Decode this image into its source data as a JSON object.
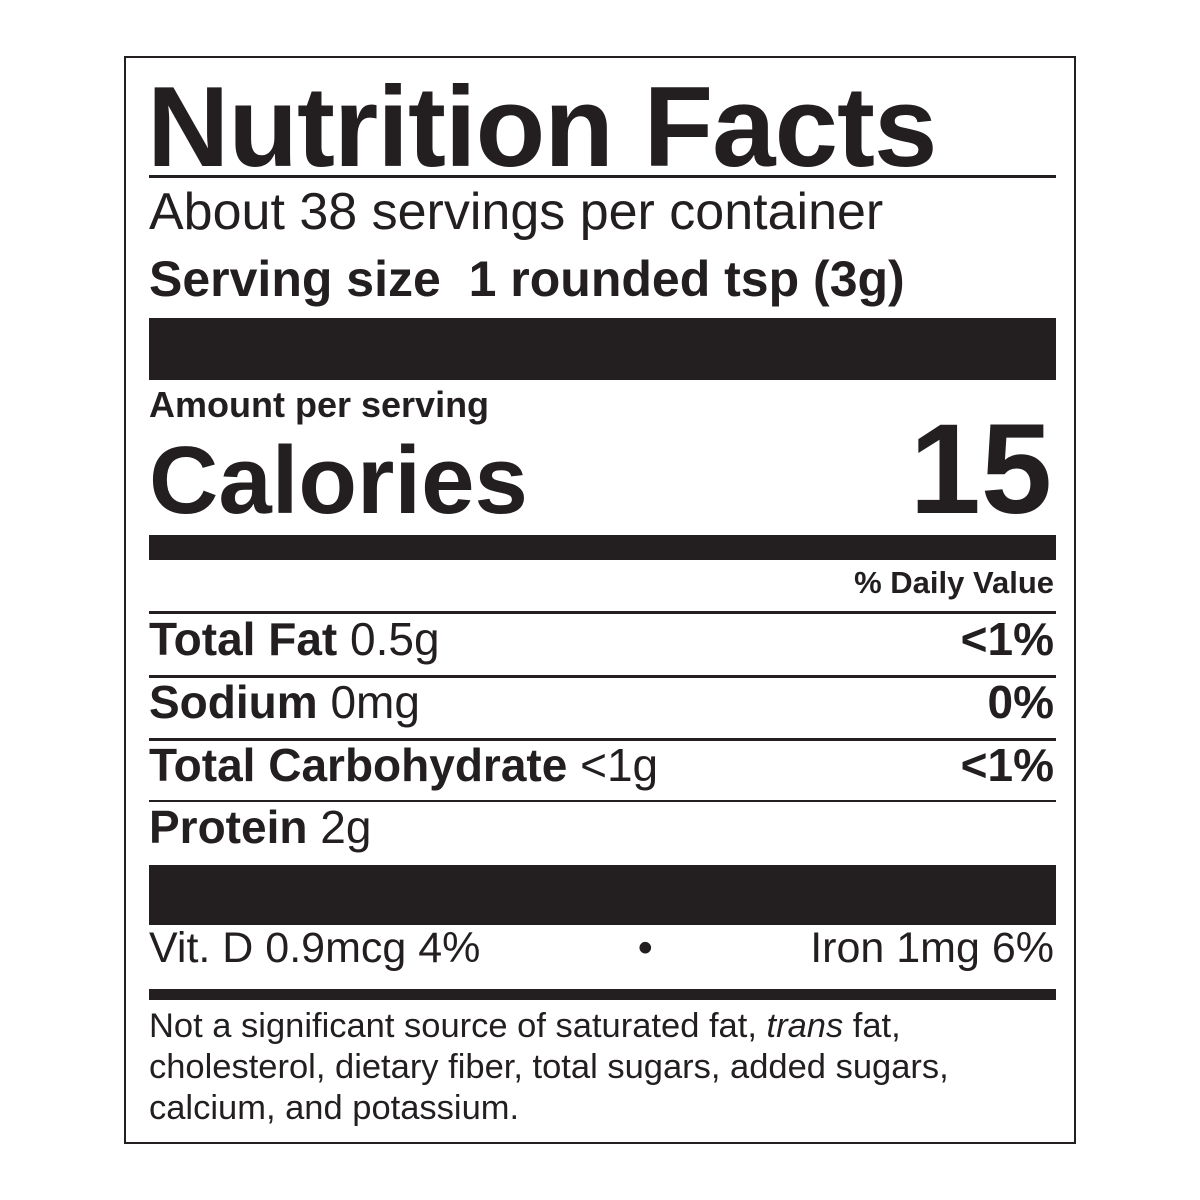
{
  "label": {
    "title": "Nutrition Facts",
    "servings_per_container": "About 38 servings per container",
    "serving_size_label": "Serving size",
    "serving_size_value": "1 rounded tsp (3g)",
    "amount_per_serving": "Amount per serving",
    "calories_label": "Calories",
    "calories_value": "15",
    "daily_value_header": "% Daily Value",
    "nutrients": [
      {
        "name": "Total Fat",
        "amount": "0.5g",
        "dv": "<1%"
      },
      {
        "name": "Sodium",
        "amount": "0mg",
        "dv": "0%"
      },
      {
        "name": "Total Carbohydrate",
        "amount": "<1g",
        "dv": "<1%"
      },
      {
        "name": "Protein",
        "amount": "2g",
        "dv": ""
      }
    ],
    "vitamins": {
      "left": "Vit. D 0.9mcg 4%",
      "separator": "•",
      "right": "Iron 1mg 6%"
    },
    "footnote": {
      "part1": "Not a significant source of saturated fat, ",
      "italic": "trans",
      "part2": " fat, cholesterol, dietary fiber, total sugars, added sugars, calcium, and potassium."
    }
  }
}
